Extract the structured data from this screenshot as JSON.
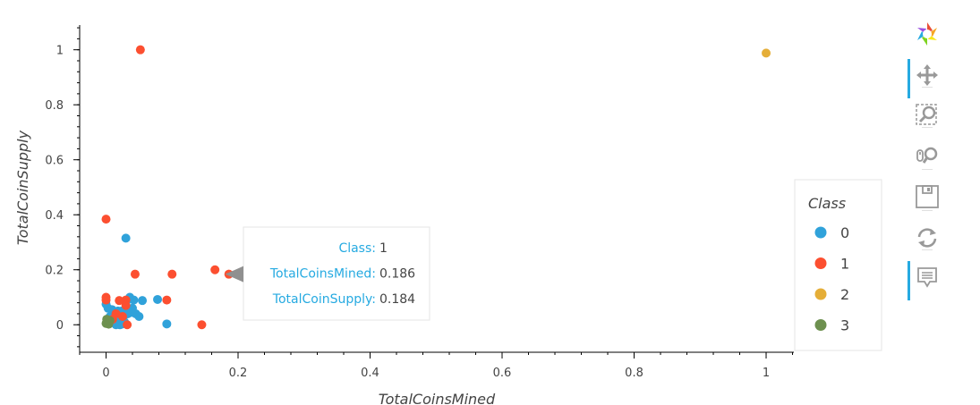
{
  "chart_data": {
    "type": "scatter",
    "xlabel": "TotalCoinsMined",
    "ylabel": "TotalCoinSupply",
    "xlim": [
      -0.04,
      1.042
    ],
    "ylim": [
      -0.1,
      1.09
    ],
    "xticks": [
      0,
      0.2,
      0.4,
      0.6,
      0.8,
      1
    ],
    "xtick_labels": [
      "0",
      "0.2",
      "0.4",
      "0.6",
      "0.8",
      "1"
    ],
    "yticks": [
      0,
      0.2,
      0.4,
      0.6,
      0.8,
      1
    ],
    "ytick_labels": [
      "0",
      "0.2",
      "0.4",
      "0.6",
      "0.8",
      "1"
    ],
    "legend": {
      "title": "Class",
      "position": "right"
    },
    "series": [
      {
        "name": "0",
        "color": "#30a2da",
        "x": [
          0.0,
          0.003,
          0.006,
          0.009,
          0.012,
          0.015,
          0.018,
          0.021,
          0.024,
          0.027,
          0.03,
          0.033,
          0.036,
          0.039,
          0.042,
          0.045,
          0.05,
          0.055,
          0.03,
          0.078,
          0.092,
          0.012,
          0.02,
          0.028,
          0.04,
          0.008,
          0.016,
          0.024,
          0.006,
          0.018
        ],
        "y": [
          0.075,
          0.06,
          0.02,
          0.055,
          0.01,
          0.0,
          0.03,
          0.0,
          0.05,
          0.035,
          0.08,
          0.04,
          0.1,
          0.045,
          0.09,
          0.04,
          0.03,
          0.088,
          0.315,
          0.092,
          0.003,
          0.045,
          0.015,
          0.01,
          0.06,
          0.008,
          0.018,
          0.002,
          0.03,
          0.05
        ]
      },
      {
        "name": "1",
        "color": "#fc4f30",
        "x": [
          0.0,
          0.0,
          0.0,
          0.052,
          0.044,
          0.02,
          0.03,
          0.092,
          0.1,
          0.165,
          0.186,
          0.145,
          0.032,
          0.01,
          0.015,
          0.025,
          0.005,
          0.03
        ],
        "y": [
          0.384,
          0.1,
          0.09,
          1.0,
          0.184,
          0.088,
          0.09,
          0.09,
          0.184,
          0.2,
          0.184,
          0.0,
          0.0,
          0.02,
          0.04,
          0.03,
          0.01,
          0.07
        ]
      },
      {
        "name": "2",
        "color": "#e5ae38",
        "x": [
          1.0
        ],
        "y": [
          0.988
        ]
      },
      {
        "name": "3",
        "color": "#6d904f",
        "x": [
          0.0,
          0.002,
          0.004,
          0.006,
          0.001
        ],
        "y": [
          0.005,
          0.01,
          0.002,
          0.015,
          0.02
        ]
      }
    ]
  },
  "tooltip": {
    "rows": [
      {
        "key": "Class:",
        "value": "1"
      },
      {
        "key": "TotalCoinsMined:",
        "value": "0.186"
      },
      {
        "key": "TotalCoinSupply:",
        "value": "0.184"
      }
    ],
    "target_x": 0.186,
    "target_y": 0.184
  },
  "toolbar": {
    "tools": [
      {
        "name": "bokeh-logo-icon",
        "active": false
      },
      {
        "name": "pan-icon",
        "active": true
      },
      {
        "name": "box-zoom-icon",
        "active": false
      },
      {
        "name": "wheel-zoom-icon",
        "active": false
      },
      {
        "name": "save-icon",
        "active": false
      },
      {
        "name": "reset-icon",
        "active": false
      },
      {
        "name": "hover-icon",
        "active": true
      }
    ]
  }
}
